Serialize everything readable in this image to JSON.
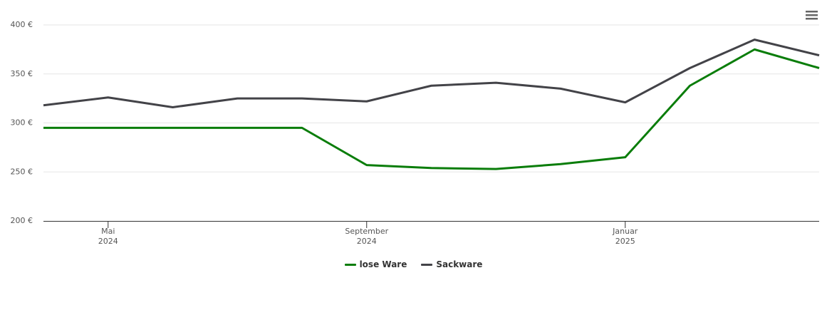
{
  "chart_data": {
    "type": "line",
    "x": [
      "2024-04",
      "2024-05",
      "2024-06",
      "2024-07",
      "2024-08",
      "2024-09",
      "2024-10",
      "2024-11",
      "2024-12",
      "2025-01",
      "2025-02",
      "2025-03",
      "2025-04"
    ],
    "series": [
      {
        "name": "lose Ware",
        "color": "#0a7d0a",
        "values": [
          295,
          295,
          295,
          295,
          295,
          257,
          254,
          253,
          258,
          265,
          338,
          375,
          356
        ]
      },
      {
        "name": "Sackware",
        "color": "#434348",
        "values": [
          318,
          326,
          316,
          325,
          325,
          322,
          338,
          341,
          335,
          321,
          356,
          385,
          369
        ]
      }
    ],
    "xlim": [
      "2024-04",
      "2025-04"
    ],
    "xticks": [
      {
        "value": "2024-05",
        "label": "Mai\n2024"
      },
      {
        "value": "2024-09",
        "label": "September\n2024"
      },
      {
        "value": "2025-01",
        "label": "Januar\n2025"
      }
    ],
    "ylim": [
      200,
      400
    ],
    "yticks": [
      {
        "value": 200,
        "label": "200 €"
      },
      {
        "value": 250,
        "label": "250 €"
      },
      {
        "value": 300,
        "label": "300 €"
      },
      {
        "value": 350,
        "label": "350 €"
      },
      {
        "value": 400,
        "label": "400 €"
      }
    ],
    "grid": true
  }
}
